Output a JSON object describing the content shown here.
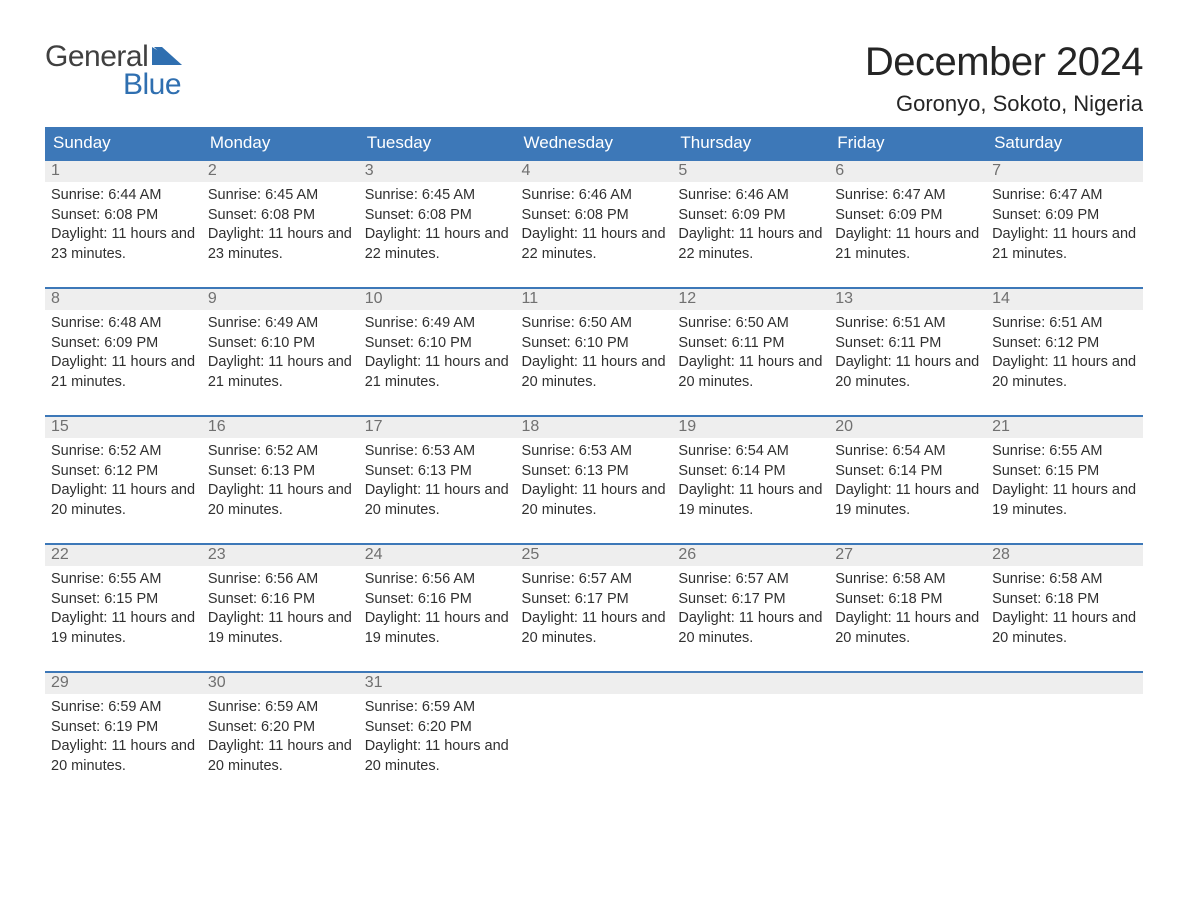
{
  "logo": {
    "word1": "General",
    "word2": "Blue"
  },
  "title": "December 2024",
  "location": "Goronyo, Sokoto, Nigeria",
  "colors": {
    "header_bg": "#3d78b8",
    "header_text": "#ffffff",
    "daynum_bg": "#eeeeee",
    "daynum_text": "#707070",
    "body_text": "#303030",
    "row_divider": "#3d78b8",
    "logo_blue": "#2f6fb0",
    "logo_gray": "#404040",
    "page_bg": "#ffffff"
  },
  "layout": {
    "type": "calendar",
    "columns": 7,
    "rows": 5,
    "body_fontsize": 14.5,
    "header_fontsize": 17,
    "daynum_fontsize": 16,
    "title_fontsize": 40,
    "location_fontsize": 22
  },
  "day_headers": [
    "Sunday",
    "Monday",
    "Tuesday",
    "Wednesday",
    "Thursday",
    "Friday",
    "Saturday"
  ],
  "weeks": [
    [
      {
        "n": "1",
        "sunrise": "Sunrise: 6:44 AM",
        "sunset": "Sunset: 6:08 PM",
        "daylight": "Daylight: 11 hours and 23 minutes."
      },
      {
        "n": "2",
        "sunrise": "Sunrise: 6:45 AM",
        "sunset": "Sunset: 6:08 PM",
        "daylight": "Daylight: 11 hours and 23 minutes."
      },
      {
        "n": "3",
        "sunrise": "Sunrise: 6:45 AM",
        "sunset": "Sunset: 6:08 PM",
        "daylight": "Daylight: 11 hours and 22 minutes."
      },
      {
        "n": "4",
        "sunrise": "Sunrise: 6:46 AM",
        "sunset": "Sunset: 6:08 PM",
        "daylight": "Daylight: 11 hours and 22 minutes."
      },
      {
        "n": "5",
        "sunrise": "Sunrise: 6:46 AM",
        "sunset": "Sunset: 6:09 PM",
        "daylight": "Daylight: 11 hours and 22 minutes."
      },
      {
        "n": "6",
        "sunrise": "Sunrise: 6:47 AM",
        "sunset": "Sunset: 6:09 PM",
        "daylight": "Daylight: 11 hours and 21 minutes."
      },
      {
        "n": "7",
        "sunrise": "Sunrise: 6:47 AM",
        "sunset": "Sunset: 6:09 PM",
        "daylight": "Daylight: 11 hours and 21 minutes."
      }
    ],
    [
      {
        "n": "8",
        "sunrise": "Sunrise: 6:48 AM",
        "sunset": "Sunset: 6:09 PM",
        "daylight": "Daylight: 11 hours and 21 minutes."
      },
      {
        "n": "9",
        "sunrise": "Sunrise: 6:49 AM",
        "sunset": "Sunset: 6:10 PM",
        "daylight": "Daylight: 11 hours and 21 minutes."
      },
      {
        "n": "10",
        "sunrise": "Sunrise: 6:49 AM",
        "sunset": "Sunset: 6:10 PM",
        "daylight": "Daylight: 11 hours and 21 minutes."
      },
      {
        "n": "11",
        "sunrise": "Sunrise: 6:50 AM",
        "sunset": "Sunset: 6:10 PM",
        "daylight": "Daylight: 11 hours and 20 minutes."
      },
      {
        "n": "12",
        "sunrise": "Sunrise: 6:50 AM",
        "sunset": "Sunset: 6:11 PM",
        "daylight": "Daylight: 11 hours and 20 minutes."
      },
      {
        "n": "13",
        "sunrise": "Sunrise: 6:51 AM",
        "sunset": "Sunset: 6:11 PM",
        "daylight": "Daylight: 11 hours and 20 minutes."
      },
      {
        "n": "14",
        "sunrise": "Sunrise: 6:51 AM",
        "sunset": "Sunset: 6:12 PM",
        "daylight": "Daylight: 11 hours and 20 minutes."
      }
    ],
    [
      {
        "n": "15",
        "sunrise": "Sunrise: 6:52 AM",
        "sunset": "Sunset: 6:12 PM",
        "daylight": "Daylight: 11 hours and 20 minutes."
      },
      {
        "n": "16",
        "sunrise": "Sunrise: 6:52 AM",
        "sunset": "Sunset: 6:13 PM",
        "daylight": "Daylight: 11 hours and 20 minutes."
      },
      {
        "n": "17",
        "sunrise": "Sunrise: 6:53 AM",
        "sunset": "Sunset: 6:13 PM",
        "daylight": "Daylight: 11 hours and 20 minutes."
      },
      {
        "n": "18",
        "sunrise": "Sunrise: 6:53 AM",
        "sunset": "Sunset: 6:13 PM",
        "daylight": "Daylight: 11 hours and 20 minutes."
      },
      {
        "n": "19",
        "sunrise": "Sunrise: 6:54 AM",
        "sunset": "Sunset: 6:14 PM",
        "daylight": "Daylight: 11 hours and 19 minutes."
      },
      {
        "n": "20",
        "sunrise": "Sunrise: 6:54 AM",
        "sunset": "Sunset: 6:14 PM",
        "daylight": "Daylight: 11 hours and 19 minutes."
      },
      {
        "n": "21",
        "sunrise": "Sunrise: 6:55 AM",
        "sunset": "Sunset: 6:15 PM",
        "daylight": "Daylight: 11 hours and 19 minutes."
      }
    ],
    [
      {
        "n": "22",
        "sunrise": "Sunrise: 6:55 AM",
        "sunset": "Sunset: 6:15 PM",
        "daylight": "Daylight: 11 hours and 19 minutes."
      },
      {
        "n": "23",
        "sunrise": "Sunrise: 6:56 AM",
        "sunset": "Sunset: 6:16 PM",
        "daylight": "Daylight: 11 hours and 19 minutes."
      },
      {
        "n": "24",
        "sunrise": "Sunrise: 6:56 AM",
        "sunset": "Sunset: 6:16 PM",
        "daylight": "Daylight: 11 hours and 19 minutes."
      },
      {
        "n": "25",
        "sunrise": "Sunrise: 6:57 AM",
        "sunset": "Sunset: 6:17 PM",
        "daylight": "Daylight: 11 hours and 20 minutes."
      },
      {
        "n": "26",
        "sunrise": "Sunrise: 6:57 AM",
        "sunset": "Sunset: 6:17 PM",
        "daylight": "Daylight: 11 hours and 20 minutes."
      },
      {
        "n": "27",
        "sunrise": "Sunrise: 6:58 AM",
        "sunset": "Sunset: 6:18 PM",
        "daylight": "Daylight: 11 hours and 20 minutes."
      },
      {
        "n": "28",
        "sunrise": "Sunrise: 6:58 AM",
        "sunset": "Sunset: 6:18 PM",
        "daylight": "Daylight: 11 hours and 20 minutes."
      }
    ],
    [
      {
        "n": "29",
        "sunrise": "Sunrise: 6:59 AM",
        "sunset": "Sunset: 6:19 PM",
        "daylight": "Daylight: 11 hours and 20 minutes."
      },
      {
        "n": "30",
        "sunrise": "Sunrise: 6:59 AM",
        "sunset": "Sunset: 6:20 PM",
        "daylight": "Daylight: 11 hours and 20 minutes."
      },
      {
        "n": "31",
        "sunrise": "Sunrise: 6:59 AM",
        "sunset": "Sunset: 6:20 PM",
        "daylight": "Daylight: 11 hours and 20 minutes."
      },
      null,
      null,
      null,
      null
    ]
  ]
}
